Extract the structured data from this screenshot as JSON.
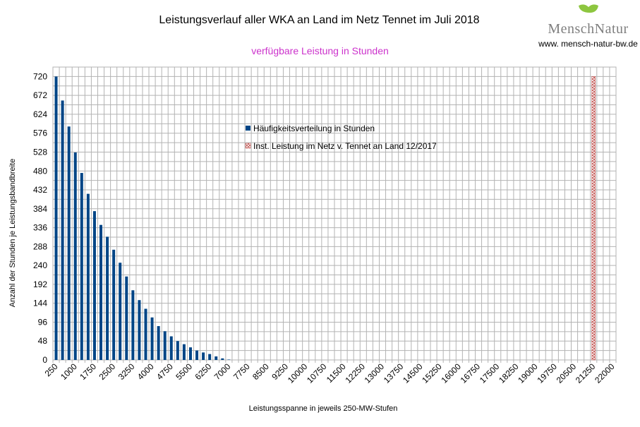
{
  "chart_data": {
    "type": "bar",
    "title": "Leistungsverlauf aller WKA an Land im Netz Tennet im Juli 2018",
    "subtitle": "verfügbare Leistung in Stunden",
    "xlabel": "Leistungsspanne in jeweils 250-MW-Stufen",
    "ylabel": "Anzahl der Stunden je Leistungsbandbreite",
    "ylim": [
      0,
      744
    ],
    "yticks": [
      0,
      48,
      96,
      144,
      192,
      240,
      288,
      336,
      384,
      432,
      480,
      528,
      576,
      624,
      672,
      720
    ],
    "x_start": 250,
    "x_step": 250,
    "x_end": 22000,
    "x_label_every": 3,
    "grid": true,
    "legend_position": "top-center",
    "series": [
      {
        "name": "Häufigkeitsverteilung in Stunden",
        "color": "#004586",
        "x": [
          250,
          500,
          750,
          1000,
          1250,
          1500,
          1750,
          2000,
          2250,
          2500,
          2750,
          3000,
          3250,
          3500,
          3750,
          4000,
          4250,
          4500,
          4750,
          5000,
          5250,
          5500,
          5750,
          6000,
          6250,
          6500,
          6750,
          7000
        ],
        "values": [
          720,
          659,
          593,
          527,
          475,
          422,
          378,
          343,
          313,
          280,
          247,
          212,
          177,
          152,
          130,
          108,
          86,
          73,
          60,
          48,
          40,
          32,
          24,
          19,
          15,
          9,
          4,
          1
        ]
      },
      {
        "name": "Inst. Leistung im Netz v. Tennet an Land 12/2017",
        "color": "#c0504d",
        "x": [
          21250
        ],
        "values": [
          720
        ]
      }
    ]
  },
  "logo": {
    "brand": "MenschNatur",
    "url": "www. mensch-natur-bw.de"
  }
}
